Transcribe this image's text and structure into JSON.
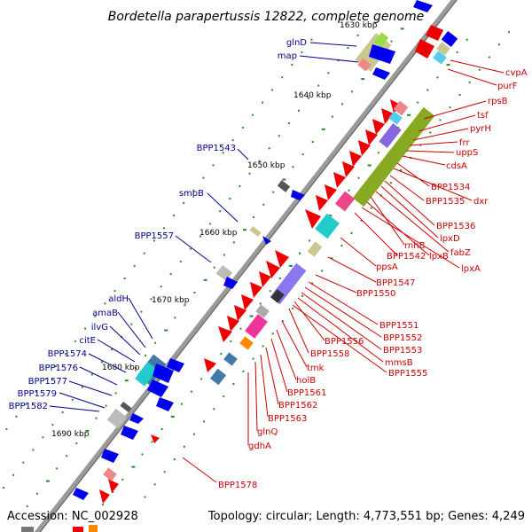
{
  "title": "Bordetella parapertussis 12822, complete genome",
  "footer": {
    "accession": "Accession: NC_002928",
    "topology": "Topology: circular; Length: 4,773,551 bp; Genes: 4,249"
  },
  "colors": {
    "backbone": "#8a8a8a",
    "tick": "#2a8a2a",
    "left_label": "#00008b",
    "right_label": "#cc0000",
    "forward_gene": "#0000ee",
    "reverse_gene": "#ee0000"
  },
  "scale_labels": [
    "1630 kbp",
    "1640 kbp",
    "1650 kbp",
    "1660 kbp",
    "1670 kbp",
    "1680 kbp",
    "1690 kbp"
  ],
  "left_labels": [
    "glnD",
    "map",
    "BPP1543",
    "smpB",
    "BPP1557",
    "aldH",
    "amaB",
    "ilvG",
    "citE",
    "BPP1574",
    "BPP1576",
    "BPP1577",
    "BPP1579",
    "BPP1582"
  ],
  "right_labels": [
    "cvpA",
    "purF",
    "rpsB",
    "tsf",
    "pyrH",
    "frr",
    "uppS",
    "cdsA",
    "BPP1534",
    "dxr",
    "BPP1535",
    "BPP1536",
    "lpxD",
    "fabZ",
    "rnhB",
    "lpxB",
    "lpxA",
    "BPP1542",
    "ppsA",
    "BPP1547",
    "BPP1550",
    "BPP1551",
    "BPP1552",
    "BPP1553",
    "BPP1556",
    "mmsB",
    "BPP1558",
    "BPP1555",
    "tmk",
    "holB",
    "BPP1561",
    "BPP1562",
    "BPP1563",
    "glnQ",
    "gdhA",
    "BPP1578"
  ]
}
